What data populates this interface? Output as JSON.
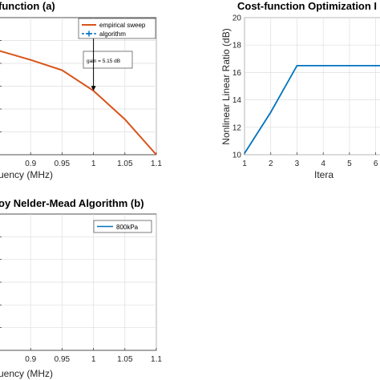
{
  "chart_data": [
    {
      "type": "line",
      "title": "function (a)",
      "xlabel": "uency (MHz)",
      "ylabel": "",
      "x_ticks": [
        "0.9",
        "0.95",
        "1",
        "1.05",
        "1.1"
      ],
      "xlim": [
        0.85,
        1.1
      ],
      "series": [
        {
          "name": "empirical sweep",
          "color": "#D95319",
          "x": [
            0.85,
            0.9,
            0.95,
            1.0,
            1.05,
            1.1
          ],
          "y": [
            16.6,
            15.8,
            14.9,
            13.1,
            10.6,
            7.5
          ]
        },
        {
          "name": "algorithm",
          "color": "#0072BD",
          "style": "dashed-marker",
          "x": [],
          "y": []
        }
      ],
      "ylim": [
        7.5,
        19.5
      ],
      "annotation": {
        "text": "gain = 5.15 dB",
        "x": 1.0,
        "y_from": 18.1,
        "y_to": 13.1
      },
      "grid": true,
      "legend": "top-right"
    },
    {
      "type": "line",
      "title": "Cost-function Optimization I",
      "xlabel": "Itera",
      "ylabel": "Nonlinear Linear Ratio (dB)",
      "x_ticks": [
        "1",
        "2",
        "3",
        "4",
        "5",
        "6"
      ],
      "y_ticks": [
        "10",
        "12",
        "14",
        "16",
        "18",
        "20"
      ],
      "xlim": [
        1,
        6.5
      ],
      "ylim": [
        10,
        20
      ],
      "series": [
        {
          "color": "#0072BD",
          "x": [
            1,
            2,
            3,
            4,
            5,
            6,
            6.5
          ],
          "y": [
            10.1,
            13.1,
            16.5,
            16.5,
            16.5,
            16.5,
            16.5
          ]
        }
      ],
      "grid": true
    },
    {
      "type": "line",
      "title": "oy Nelder-Mead Algorithm (b)",
      "xlabel": "uency (MHz)",
      "ylabel": "",
      "x_ticks": [
        "0.9",
        "0.95",
        "1",
        "1.05",
        "1.1"
      ],
      "xlim": [
        0.85,
        1.1
      ],
      "series": [
        {
          "name": "800kPa",
          "color": "#0072BD",
          "x": [],
          "y": []
        }
      ],
      "grid": true,
      "legend": "top-right"
    }
  ]
}
